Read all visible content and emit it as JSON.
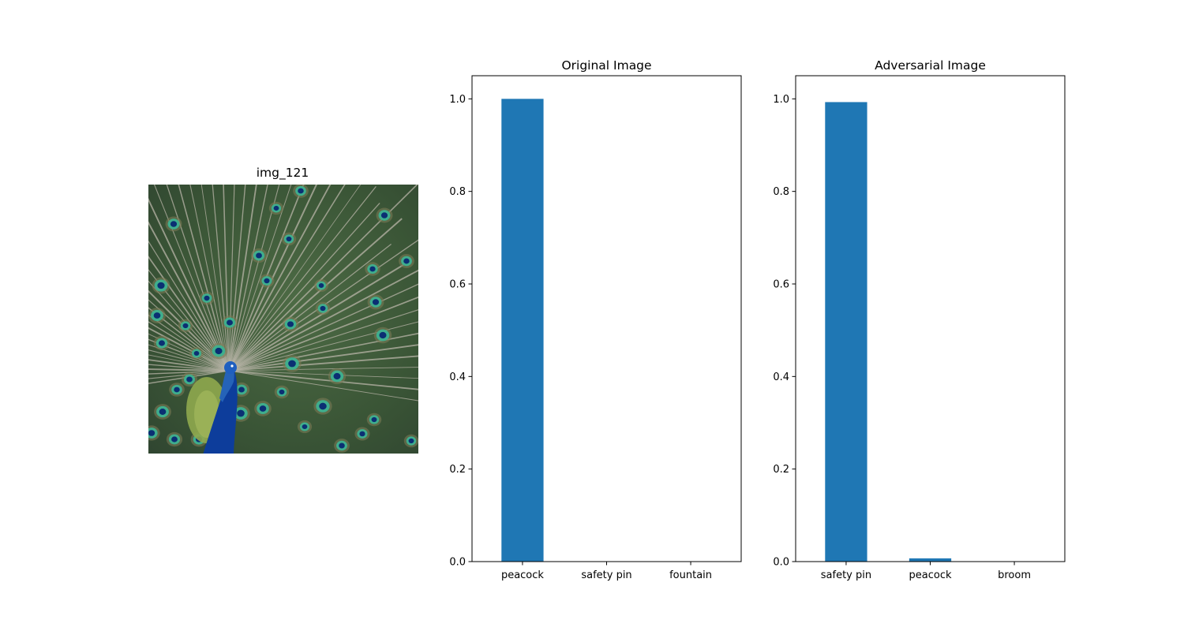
{
  "image_panel": {
    "title": "img_121",
    "subject": "peacock-with-fanned-tail",
    "colors": {
      "background": "#3f5a3a",
      "feather_shaft": "#b9b5a8",
      "eye_ring": "#3fae8d",
      "eye_center": "#0b2f73",
      "body": "#0d3d9b",
      "neck": "#2563b8",
      "chest_patch": "#8fa84e"
    }
  },
  "chart_data": [
    {
      "type": "bar",
      "title": "Original Image",
      "categories": [
        "peacock",
        "safety pin",
        "fountain"
      ],
      "values": [
        1.0,
        0.0,
        0.0
      ],
      "ylim": [
        0,
        1.05
      ],
      "yticks": [
        0.0,
        0.2,
        0.4,
        0.6,
        0.8,
        1.0
      ],
      "ytick_labels": [
        "0.0",
        "0.2",
        "0.4",
        "0.6",
        "0.8",
        "1.0"
      ],
      "xlabel": "",
      "ylabel": "",
      "grid": false,
      "bar_color": "#1f77b4"
    },
    {
      "type": "bar",
      "title": "Adversarial Image",
      "categories": [
        "safety pin",
        "peacock",
        "broom"
      ],
      "values": [
        0.993,
        0.007,
        0.0
      ],
      "ylim": [
        0,
        1.05
      ],
      "yticks": [
        0.0,
        0.2,
        0.4,
        0.6,
        0.8,
        1.0
      ],
      "ytick_labels": [
        "0.0",
        "0.2",
        "0.4",
        "0.6",
        "0.8",
        "1.0"
      ],
      "xlabel": "",
      "ylabel": "",
      "grid": false,
      "bar_color": "#1f77b4"
    }
  ]
}
